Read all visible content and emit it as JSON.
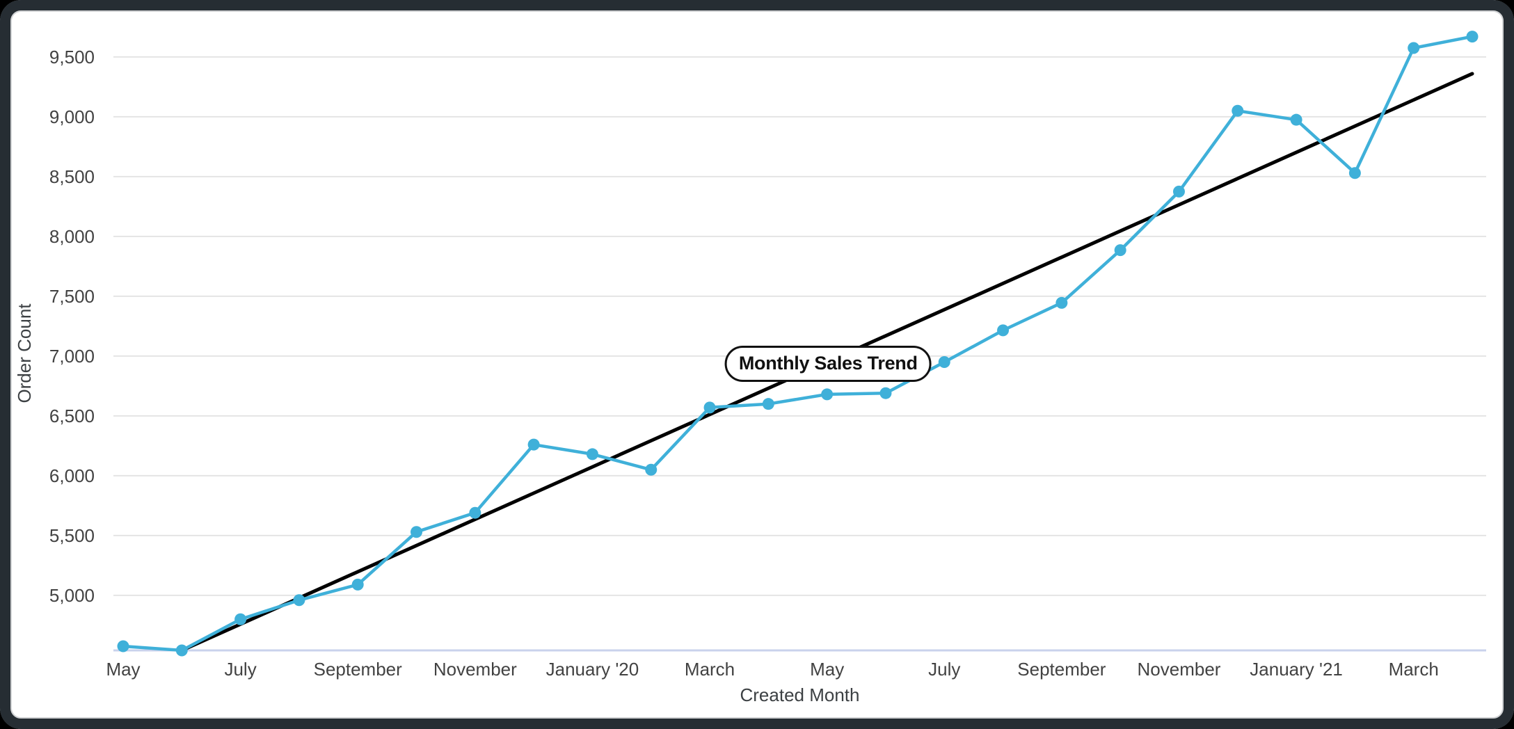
{
  "chart_data": {
    "type": "line",
    "title": "Monthly Sales Trend",
    "xlabel": "Created Month",
    "ylabel": "Order Count",
    "x_tick_labels": [
      "May",
      "July",
      "September",
      "November",
      "January '20",
      "March",
      "May",
      "July",
      "September",
      "November",
      "January '21",
      "March"
    ],
    "x_tick_step": 2,
    "point_count": 24,
    "y_ticks": [
      5000,
      5500,
      6000,
      6500,
      7000,
      7500,
      8000,
      8500,
      9000,
      9500
    ],
    "ylim": [
      4540,
      9750
    ],
    "grid": "horizontal",
    "legend_position": "none",
    "series": [
      {
        "name": "Order Count",
        "style": "line_with_markers",
        "color": "#3fb0d9",
        "values": [
          4575,
          4540,
          4800,
          4960,
          5090,
          5530,
          5690,
          6260,
          6180,
          6050,
          6570,
          6600,
          6680,
          6690,
          6950,
          7215,
          7445,
          7885,
          8375,
          9050,
          8975,
          8530,
          9575,
          9670
        ]
      },
      {
        "name": "trend-line",
        "style": "straight_line",
        "color": "#000000",
        "start_index": 1,
        "start_value": 4540,
        "end_index": 23,
        "end_value": 9360
      }
    ]
  },
  "colors": {
    "background": "#ffffff",
    "frame": "#262d33",
    "gridline": "#e4e4e4",
    "axis_baseline": "#c9d2ec",
    "tick_text": "#424242",
    "axis_title_text": "#3c4043",
    "pill_background": "#ffffff",
    "pill_border": "#111111",
    "pill_text": "#111111"
  }
}
